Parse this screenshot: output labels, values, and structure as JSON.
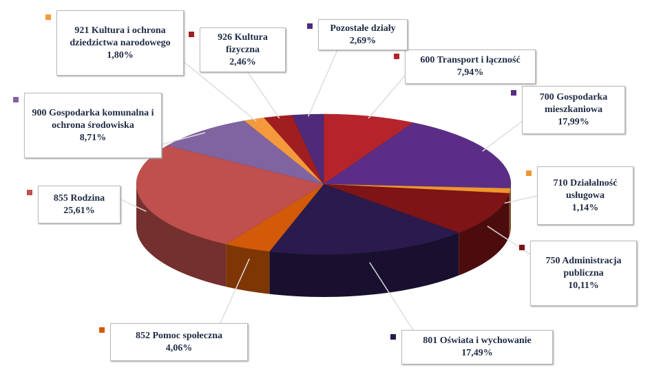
{
  "chart_data": {
    "type": "pie3d",
    "categories": [
      "600 Transport i łączność",
      "700 Gospodarka mieszkaniowa",
      "710 Działalność usługowa",
      "750 Administracja publiczna",
      "801 Oświata i wychowanie",
      "852 Pomoc społeczna",
      "855 Rodzina",
      "900 Gospodarka komunalna i ochrona środowiska",
      "921 Kultura i ochrona dziedzictwa narodowego",
      "926 Kultura fizyczna",
      "Pozostałe działy"
    ],
    "values": [
      7.94,
      17.99,
      1.14,
      10.11,
      17.49,
      4.06,
      25.61,
      8.71,
      1.8,
      2.46,
      2.69
    ],
    "value_labels": [
      "7,94%",
      "17,99%",
      "1,14%",
      "10,11%",
      "17,49%",
      "4,06%",
      "25,61%",
      "8,71%",
      "1,80%",
      "2,46%",
      "2,69%"
    ],
    "colors": [
      "#b5242a",
      "#5b2d86",
      "#f0962f",
      "#7e1415",
      "#2a1a4e",
      "#d35a08",
      "#c0504d",
      "#8064a2",
      "#f59a3c",
      "#a01e20",
      "#4f2a7a"
    ]
  }
}
